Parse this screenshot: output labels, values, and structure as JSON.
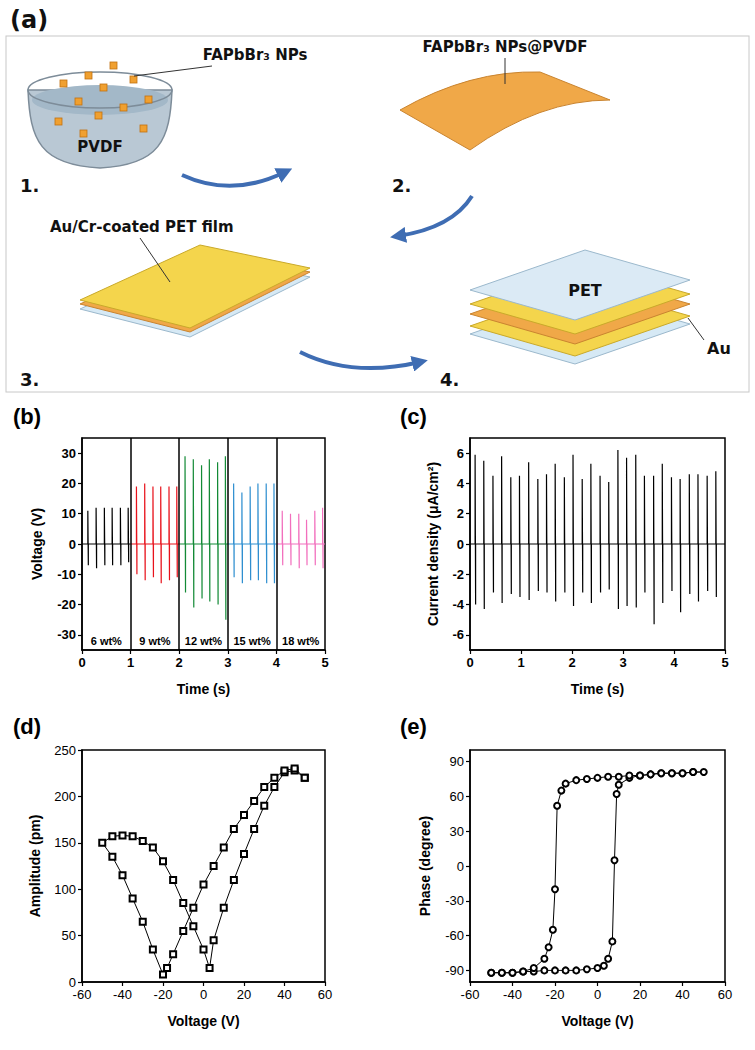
{
  "diagram": {
    "panel": "(a)",
    "steps": [
      {
        "number": "1.",
        "callout": "FAPbBr₃ NPs",
        "label": "PVDF"
      },
      {
        "number": "2.",
        "callout": "FAPbBr₃ NPs@PVDF"
      },
      {
        "number": "3.",
        "callout": "Au/Cr-coated PET film"
      },
      {
        "number": "4.",
        "layers": [
          "PET",
          "Au"
        ]
      }
    ]
  },
  "chart_data": [
    {
      "type": "line",
      "title": "(b)",
      "x_label": "Time (s)",
      "y_label": "Voltage (V)",
      "xlim": [
        0,
        5
      ],
      "xticks": [
        0,
        1,
        2,
        3,
        4,
        5
      ],
      "ylim": [
        -35,
        35
      ],
      "yticks": [
        -30,
        -20,
        -10,
        0,
        10,
        20,
        30
      ],
      "grid": false,
      "series": [
        {
          "name": "6 wt%",
          "color": "#000000",
          "x": [
            0,
            0.12,
            0.12,
            0.13,
            0.13,
            0.29,
            0.29,
            0.3,
            0.3,
            0.46,
            0.46,
            0.47,
            0.47,
            0.62,
            0.62,
            0.63,
            0.63,
            0.79,
            0.79,
            0.8,
            0.8,
            0.95,
            0.95,
            0.96,
            0.96,
            1
          ],
          "values": [
            0,
            0,
            11,
            -7,
            0,
            0,
            12,
            -8,
            0,
            0,
            12,
            -7,
            0,
            0,
            12,
            -7,
            0,
            0,
            12,
            -7,
            0,
            0,
            12,
            -6,
            0,
            0
          ]
        },
        {
          "name": "9 wt%",
          "color": "#e8121b",
          "x": [
            1,
            1.12,
            1.12,
            1.13,
            1.13,
            1.29,
            1.29,
            1.3,
            1.3,
            1.46,
            1.46,
            1.47,
            1.47,
            1.62,
            1.62,
            1.63,
            1.63,
            1.79,
            1.79,
            1.8,
            1.8,
            1.95,
            1.95,
            1.96,
            1.96,
            2
          ],
          "values": [
            0,
            0,
            19,
            -10,
            0,
            0,
            20,
            -12,
            0,
            0,
            19,
            -11,
            0,
            0,
            19,
            -13,
            0,
            0,
            19,
            -12,
            0,
            0,
            19,
            -11,
            0,
            0
          ]
        },
        {
          "name": "12 wt%",
          "color": "#138a36",
          "x": [
            2,
            2.12,
            2.12,
            2.13,
            2.13,
            2.29,
            2.29,
            2.3,
            2.3,
            2.46,
            2.46,
            2.47,
            2.47,
            2.62,
            2.62,
            2.63,
            2.63,
            2.79,
            2.79,
            2.8,
            2.8,
            2.95,
            2.95,
            2.96,
            2.96,
            3
          ],
          "values": [
            0,
            0,
            29,
            -16,
            0,
            0,
            28,
            -21,
            0,
            0,
            26,
            -18,
            0,
            0,
            28,
            -19,
            0,
            0,
            27,
            -20,
            0,
            0,
            29,
            -25,
            0,
            0
          ]
        },
        {
          "name": "15 wt%",
          "color": "#2f8fd0",
          "x": [
            3,
            3.12,
            3.12,
            3.13,
            3.13,
            3.29,
            3.29,
            3.3,
            3.3,
            3.46,
            3.46,
            3.47,
            3.47,
            3.62,
            3.62,
            3.63,
            3.63,
            3.79,
            3.79,
            3.8,
            3.8,
            3.95,
            3.95,
            3.96,
            3.96,
            4
          ],
          "values": [
            0,
            0,
            20,
            -11,
            0,
            0,
            17,
            -13,
            0,
            0,
            19,
            -12,
            0,
            0,
            20,
            -12,
            0,
            0,
            20,
            -13,
            0,
            0,
            20,
            -13,
            0,
            0
          ]
        },
        {
          "name": "18 wt%",
          "color": "#f26fbd",
          "x": [
            4,
            4.12,
            4.12,
            4.13,
            4.13,
            4.29,
            4.29,
            4.3,
            4.3,
            4.46,
            4.46,
            4.47,
            4.47,
            4.62,
            4.62,
            4.63,
            4.63,
            4.79,
            4.79,
            4.8,
            4.8,
            4.95,
            4.95,
            4.96,
            4.96,
            5
          ],
          "values": [
            0,
            0,
            11,
            -7,
            0,
            0,
            10,
            -7,
            0,
            0,
            10,
            -8,
            0,
            0,
            8,
            -7,
            0,
            0,
            11,
            -7,
            0,
            0,
            12,
            -8,
            0,
            0
          ]
        }
      ]
    },
    {
      "type": "line",
      "title": "(c)",
      "x_label": "Time (s)",
      "y_label": "Current density (μA/cm²)",
      "xlim": [
        0,
        5
      ],
      "xticks": [
        0,
        1,
        2,
        3,
        4,
        5
      ],
      "ylim": [
        -7,
        7
      ],
      "yticks": [
        -6,
        -4,
        -2,
        0,
        2,
        4,
        6
      ],
      "grid": false,
      "series": [
        {
          "color": "#000000",
          "x": [
            0,
            0.1,
            0.1,
            0.11,
            0.11,
            0.27,
            0.27,
            0.28,
            0.28,
            0.45,
            0.45,
            0.46,
            0.46,
            0.62,
            0.62,
            0.63,
            0.63,
            0.8,
            0.8,
            0.81,
            0.81,
            0.97,
            0.97,
            0.98,
            0.98,
            1.15,
            1.15,
            1.16,
            1.16,
            1.33,
            1.33,
            1.34,
            1.34,
            1.5,
            1.5,
            1.51,
            1.51,
            1.67,
            1.67,
            1.68,
            1.68,
            1.85,
            1.85,
            1.86,
            1.86,
            2.02,
            2.02,
            2.03,
            2.03,
            2.2,
            2.2,
            2.21,
            2.21,
            2.37,
            2.37,
            2.38,
            2.38,
            2.55,
            2.55,
            2.56,
            2.56,
            2.72,
            2.72,
            2.73,
            2.73,
            2.9,
            2.9,
            2.91,
            2.91,
            3.07,
            3.07,
            3.08,
            3.08,
            3.25,
            3.25,
            3.26,
            3.26,
            3.42,
            3.42,
            3.43,
            3.43,
            3.6,
            3.6,
            3.61,
            3.61,
            3.77,
            3.77,
            3.78,
            3.78,
            3.95,
            3.95,
            3.96,
            3.96,
            4.12,
            4.12,
            4.13,
            4.13,
            4.3,
            4.3,
            4.31,
            4.31,
            4.47,
            4.47,
            4.48,
            4.48,
            4.65,
            4.65,
            4.66,
            4.66,
            4.82,
            4.82,
            4.83,
            4.83,
            5
          ],
          "values": [
            0,
            0,
            5.9,
            -4,
            0,
            0,
            5.5,
            -4.3,
            0,
            0,
            4.5,
            -3.2,
            0,
            0,
            5.8,
            -3.9,
            0,
            0,
            4.4,
            -3.3,
            0,
            0,
            4.5,
            -3.5,
            0,
            0,
            5.4,
            -3.7,
            0,
            0,
            4.3,
            -3.1,
            0,
            0,
            4.6,
            -3.2,
            0,
            0,
            5.3,
            -3.8,
            0,
            0,
            4.4,
            -3.2,
            0,
            0,
            5.9,
            -4.1,
            0,
            0,
            4.3,
            -3.2,
            0,
            0,
            5.3,
            -3.9,
            0,
            0,
            4.5,
            -3.2,
            0,
            0,
            4.1,
            -3,
            0,
            0,
            6.2,
            -4.3,
            0,
            0,
            5.7,
            -4.1,
            0,
            0,
            5.9,
            -4.2,
            0,
            0,
            4.5,
            -3.2,
            0,
            0,
            4.5,
            -5.3,
            0,
            0,
            5.3,
            -3.9,
            0,
            0,
            4.4,
            -3.1,
            0,
            0,
            4.3,
            -4.5,
            0,
            0,
            4.6,
            -3.3,
            0,
            0,
            4.6,
            -3.8,
            0,
            0,
            4.5,
            -3.1,
            0,
            0,
            4.8,
            -3.5,
            0,
            0
          ]
        }
      ]
    },
    {
      "type": "line",
      "title": "(d)",
      "x_label": "Voltage (V)",
      "y_label": "Amplitude (pm)",
      "xlim": [
        -60,
        60
      ],
      "xticks": [
        -60,
        -40,
        -20,
        0,
        20,
        40,
        60
      ],
      "ylim": [
        0,
        250
      ],
      "yticks": [
        0,
        50,
        100,
        150,
        200,
        250
      ],
      "grid": false,
      "series": [
        {
          "color": "#000000",
          "marker": "square",
          "x": [
            50,
            45,
            40,
            35,
            30,
            25,
            20,
            15,
            10,
            5,
            3,
            0,
            -5,
            -10,
            -15,
            -20,
            -25,
            -30,
            -35,
            -40,
            -45,
            -50,
            -45,
            -40,
            -35,
            -30,
            -25,
            -20,
            -18,
            -15,
            -10,
            -5,
            0,
            5,
            10,
            15,
            20,
            25,
            30,
            35,
            40,
            45,
            50
          ],
          "values": [
            220,
            228,
            226,
            210,
            190,
            165,
            138,
            110,
            80,
            45,
            15,
            35,
            60,
            85,
            110,
            130,
            145,
            152,
            157,
            158,
            157,
            150,
            135,
            115,
            90,
            65,
            35,
            8,
            15,
            30,
            55,
            80,
            105,
            125,
            145,
            165,
            180,
            195,
            210,
            220,
            228,
            230,
            220
          ]
        }
      ]
    },
    {
      "type": "line",
      "title": "(e)",
      "x_label": "Voltage (V)",
      "y_label": "Phase (degree)",
      "xlim": [
        -60,
        60
      ],
      "xticks": [
        -60,
        -40,
        -20,
        0,
        20,
        40,
        60
      ],
      "ylim": [
        -100,
        100
      ],
      "yticks": [
        -90,
        -60,
        -30,
        0,
        30,
        60,
        90
      ],
      "grid": false,
      "series": [
        {
          "color": "#000000",
          "marker": "circle",
          "x": [
            -50,
            -45,
            -40,
            -35,
            -30,
            -25,
            -20,
            -15,
            -10,
            -5,
            0,
            3,
            5,
            7,
            8,
            9,
            10,
            15,
            20,
            25,
            30,
            35,
            40,
            45,
            50,
            45,
            40,
            35,
            30,
            25,
            20,
            15,
            10,
            5,
            0,
            -5,
            -10,
            -15,
            -17,
            -19,
            -20,
            -21,
            -23,
            -25,
            -30,
            -35,
            -40,
            -45,
            -50
          ],
          "values": [
            -92,
            -92,
            -92,
            -91,
            -91,
            -90,
            -90,
            -90,
            -90,
            -89,
            -88,
            -86,
            -80,
            -65,
            5,
            62,
            70,
            76,
            78,
            79,
            80,
            80,
            80,
            81,
            81,
            81,
            80,
            80,
            80,
            79,
            78,
            78,
            77,
            77,
            76,
            75,
            74,
            71,
            65,
            52,
            -20,
            -55,
            -70,
            -80,
            -88,
            -91,
            -92,
            -92,
            -92
          ]
        }
      ]
    }
  ]
}
